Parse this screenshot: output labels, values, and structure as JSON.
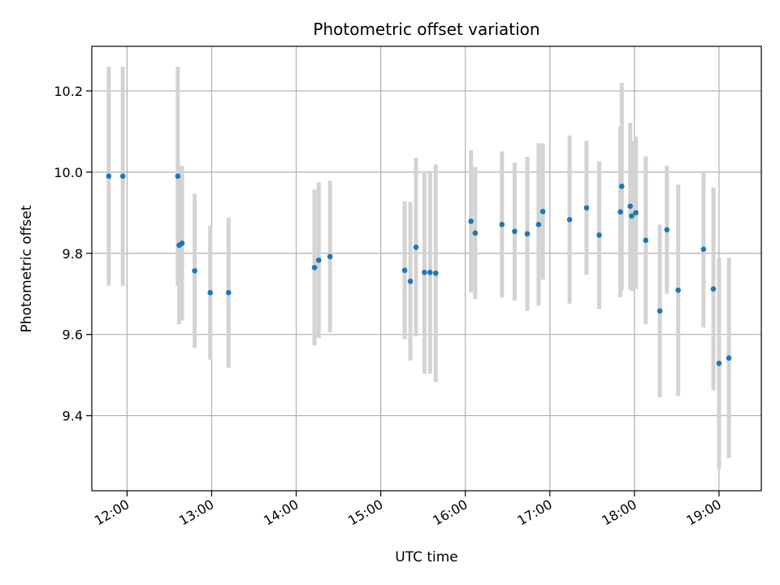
{
  "chart_data": {
    "type": "scatter",
    "title": "Photometric offset variation",
    "xlabel": "UTC time",
    "ylabel": "Photometric offset",
    "x_ticks": [
      "12:00",
      "13:00",
      "14:00",
      "15:00",
      "16:00",
      "17:00",
      "18:00",
      "19:00"
    ],
    "y_ticks": [
      9.4,
      9.6,
      9.8,
      10.0,
      10.2
    ],
    "y_tick_labels": [
      "9.4",
      "9.6",
      "9.8",
      "10.0",
      "10.2"
    ],
    "xlim": [
      "11:35",
      "19:30"
    ],
    "ylim": [
      9.215,
      10.31
    ],
    "grid": true,
    "colors": {
      "point": "#1f77b4",
      "errorbar": "#d3d3d3",
      "grid": "#b0b0b0"
    },
    "points": [
      {
        "x": "11:47",
        "y": 9.99,
        "err": 0.27
      },
      {
        "x": "11:57",
        "y": 9.99,
        "err": 0.27
      },
      {
        "x": "12:36",
        "y": 9.99,
        "err": 0.27
      },
      {
        "x": "12:37",
        "y": 9.82,
        "err": 0.195
      },
      {
        "x": "12:39",
        "y": 9.825,
        "err": 0.19
      },
      {
        "x": "12:48",
        "y": 9.757,
        "err": 0.19
      },
      {
        "x": "12:59",
        "y": 9.703,
        "err": 0.165
      },
      {
        "x": "13:12",
        "y": 9.703,
        "err": 0.185
      },
      {
        "x": "14:13",
        "y": 9.765,
        "err": 0.192
      },
      {
        "x": "14:16",
        "y": 9.783,
        "err": 0.192
      },
      {
        "x": "14:24",
        "y": 9.792,
        "err": 0.187
      },
      {
        "x": "15:17",
        "y": 9.758,
        "err": 0.17
      },
      {
        "x": "15:21",
        "y": 9.731,
        "err": 0.195
      },
      {
        "x": "15:25",
        "y": 9.815,
        "err": 0.22
      },
      {
        "x": "15:31",
        "y": 9.753,
        "err": 0.25
      },
      {
        "x": "15:35",
        "y": 9.753,
        "err": 0.25
      },
      {
        "x": "15:39",
        "y": 9.751,
        "err": 0.268
      },
      {
        "x": "16:04",
        "y": 9.879,
        "err": 0.175
      },
      {
        "x": "16:07",
        "y": 9.85,
        "err": 0.163
      },
      {
        "x": "16:26",
        "y": 9.871,
        "err": 0.18
      },
      {
        "x": "16:35",
        "y": 9.854,
        "err": 0.17
      },
      {
        "x": "16:44",
        "y": 9.848,
        "err": 0.19
      },
      {
        "x": "16:52",
        "y": 9.871,
        "err": 0.2
      },
      {
        "x": "16:55",
        "y": 9.903,
        "err": 0.168
      },
      {
        "x": "17:14",
        "y": 9.883,
        "err": 0.207
      },
      {
        "x": "17:26",
        "y": 9.912,
        "err": 0.165
      },
      {
        "x": "17:35",
        "y": 9.845,
        "err": 0.182
      },
      {
        "x": "17:50",
        "y": 9.902,
        "err": 0.21
      },
      {
        "x": "17:51",
        "y": 9.965,
        "err": 0.255
      },
      {
        "x": "17:57",
        "y": 9.916,
        "err": 0.205
      },
      {
        "x": "17:58",
        "y": 9.892,
        "err": 0.185
      },
      {
        "x": "18:01",
        "y": 9.9,
        "err": 0.188
      },
      {
        "x": "18:08",
        "y": 9.832,
        "err": 0.207
      },
      {
        "x": "18:18",
        "y": 9.658,
        "err": 0.213
      },
      {
        "x": "18:23",
        "y": 9.858,
        "err": 0.158
      },
      {
        "x": "18:31",
        "y": 9.709,
        "err": 0.26
      },
      {
        "x": "18:49",
        "y": 9.81,
        "err": 0.193
      },
      {
        "x": "18:56",
        "y": 9.712,
        "err": 0.25
      },
      {
        "x": "19:00",
        "y": 9.529,
        "err": 0.26
      },
      {
        "x": "19:07",
        "y": 9.542,
        "err": 0.247
      }
    ]
  }
}
